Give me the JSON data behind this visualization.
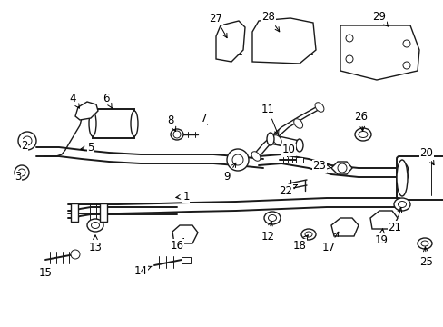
{
  "bg": "#ffffff",
  "fw": 4.89,
  "fh": 3.6,
  "dpi": 100,
  "lc": "#1a1a1a",
  "tc": "#000000",
  "fs": 8.5
}
